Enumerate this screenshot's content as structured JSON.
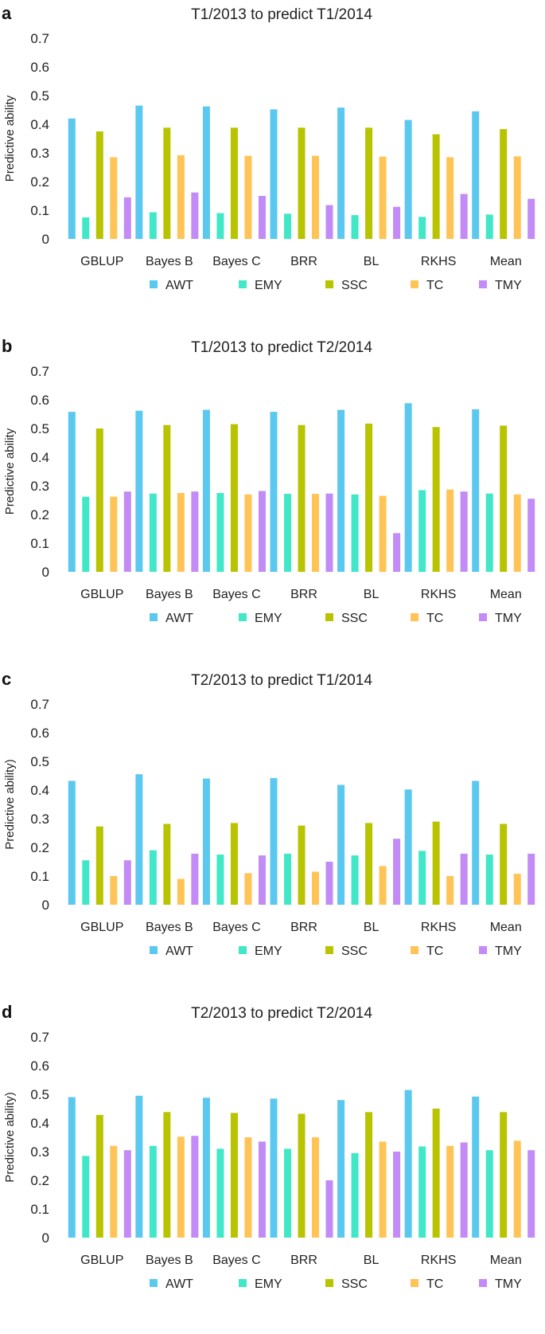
{
  "chart_data": [
    {
      "type": "bar",
      "panel": "a",
      "title": "T1/2013 to predict T1/2014",
      "xlabel": "",
      "ylabel": "Predictive ability",
      "ylim": [
        0,
        0.7
      ],
      "yticks": [
        "0",
        "0.1",
        "0.2",
        "0.3",
        "0.4",
        "0.5",
        "0.6",
        "0.7"
      ],
      "categories": [
        "GBLUP",
        "Bayes B",
        "Bayes C",
        "BRR",
        "BL",
        "RKHS",
        "Mean"
      ],
      "series": [
        {
          "name": "AWT",
          "color": "#5BC8F0",
          "values": [
            0.42,
            0.465,
            0.462,
            0.452,
            0.458,
            0.415,
            0.445
          ]
        },
        {
          "name": "EMY",
          "color": "#40E8C8",
          "values": [
            0.075,
            0.093,
            0.09,
            0.088,
            0.083,
            0.077,
            0.085
          ]
        },
        {
          "name": "SSC",
          "color": "#B8C400",
          "values": [
            0.375,
            0.388,
            0.388,
            0.388,
            0.388,
            0.365,
            0.383
          ]
        },
        {
          "name": "TC",
          "color": "#FFC455",
          "values": [
            0.285,
            0.292,
            0.29,
            0.29,
            0.287,
            0.285,
            0.288
          ]
        },
        {
          "name": "TMY",
          "color": "#C28BF5",
          "values": [
            0.145,
            0.162,
            0.15,
            0.118,
            0.112,
            0.157,
            0.14
          ]
        }
      ]
    },
    {
      "type": "bar",
      "panel": "b",
      "title": "T1/2013 to predict T2/2014",
      "xlabel": "",
      "ylabel": "Predictive ability",
      "ylim": [
        0,
        0.7
      ],
      "yticks": [
        "0",
        "0.1",
        "0.2",
        "0.3",
        "0.4",
        "0.5",
        "0.6",
        "0.7"
      ],
      "categories": [
        "GBLUP",
        "Bayes B",
        "Bayes C",
        "BRR",
        "BL",
        "RKHS",
        "Mean"
      ],
      "series": [
        {
          "name": "AWT",
          "color": "#5BC8F0",
          "values": [
            0.558,
            0.562,
            0.565,
            0.558,
            0.565,
            0.588,
            0.567
          ]
        },
        {
          "name": "EMY",
          "color": "#40E8C8",
          "values": [
            0.262,
            0.273,
            0.275,
            0.272,
            0.27,
            0.285,
            0.273
          ]
        },
        {
          "name": "SSC",
          "color": "#B8C400",
          "values": [
            0.5,
            0.512,
            0.515,
            0.512,
            0.517,
            0.505,
            0.51
          ]
        },
        {
          "name": "TC",
          "color": "#FFC455",
          "values": [
            0.262,
            0.275,
            0.27,
            0.272,
            0.265,
            0.287,
            0.27
          ]
        },
        {
          "name": "TMY",
          "color": "#C28BF5",
          "values": [
            0.28,
            0.28,
            0.282,
            0.273,
            0.135,
            0.28,
            0.255
          ]
        }
      ]
    },
    {
      "type": "bar",
      "panel": "c",
      "title": "T2/2013 to predict T1/2014",
      "xlabel": "",
      "ylabel": "Predictive ability)",
      "ylim": [
        0,
        0.7
      ],
      "yticks": [
        "0",
        "0.1",
        "0.2",
        "0.3",
        "0.4",
        "0.5",
        "0.6",
        "0.7"
      ],
      "categories": [
        "GBLUP",
        "Bayes B",
        "Bayes C",
        "BRR",
        "BL",
        "RKHS",
        "Mean"
      ],
      "series": [
        {
          "name": "AWT",
          "color": "#5BC8F0",
          "values": [
            0.432,
            0.455,
            0.44,
            0.442,
            0.418,
            0.402,
            0.432
          ]
        },
        {
          "name": "EMY",
          "color": "#40E8C8",
          "values": [
            0.155,
            0.19,
            0.175,
            0.178,
            0.172,
            0.188,
            0.175
          ]
        },
        {
          "name": "SSC",
          "color": "#B8C400",
          "values": [
            0.273,
            0.282,
            0.285,
            0.276,
            0.285,
            0.29,
            0.282
          ]
        },
        {
          "name": "TC",
          "color": "#FFC455",
          "values": [
            0.1,
            0.09,
            0.11,
            0.115,
            0.135,
            0.1,
            0.108
          ]
        },
        {
          "name": "TMY",
          "color": "#C28BF5",
          "values": [
            0.155,
            0.178,
            0.172,
            0.15,
            0.23,
            0.178,
            0.178
          ]
        }
      ]
    },
    {
      "type": "bar",
      "panel": "d",
      "title": "T2/2013 to predict T2/2014",
      "xlabel": "",
      "ylabel": "Predictive ability)",
      "ylim": [
        0,
        0.7
      ],
      "yticks": [
        "0",
        "0.1",
        "0.2",
        "0.3",
        "0.4",
        "0.5",
        "0.6",
        "0.7"
      ],
      "categories": [
        "GBLUP",
        "Bayes B",
        "Bayes C",
        "BRR",
        "BL",
        "RKHS",
        "Mean"
      ],
      "series": [
        {
          "name": "AWT",
          "color": "#5BC8F0",
          "values": [
            0.49,
            0.495,
            0.488,
            0.485,
            0.48,
            0.515,
            0.492
          ]
        },
        {
          "name": "EMY",
          "color": "#40E8C8",
          "values": [
            0.285,
            0.32,
            0.31,
            0.31,
            0.295,
            0.318,
            0.305
          ]
        },
        {
          "name": "SSC",
          "color": "#B8C400",
          "values": [
            0.428,
            0.438,
            0.435,
            0.432,
            0.438,
            0.45,
            0.438
          ]
        },
        {
          "name": "TC",
          "color": "#FFC455",
          "values": [
            0.32,
            0.352,
            0.35,
            0.35,
            0.335,
            0.32,
            0.338
          ]
        },
        {
          "name": "TMY",
          "color": "#C28BF5",
          "values": [
            0.305,
            0.355,
            0.335,
            0.2,
            0.3,
            0.332,
            0.305
          ]
        }
      ]
    }
  ]
}
